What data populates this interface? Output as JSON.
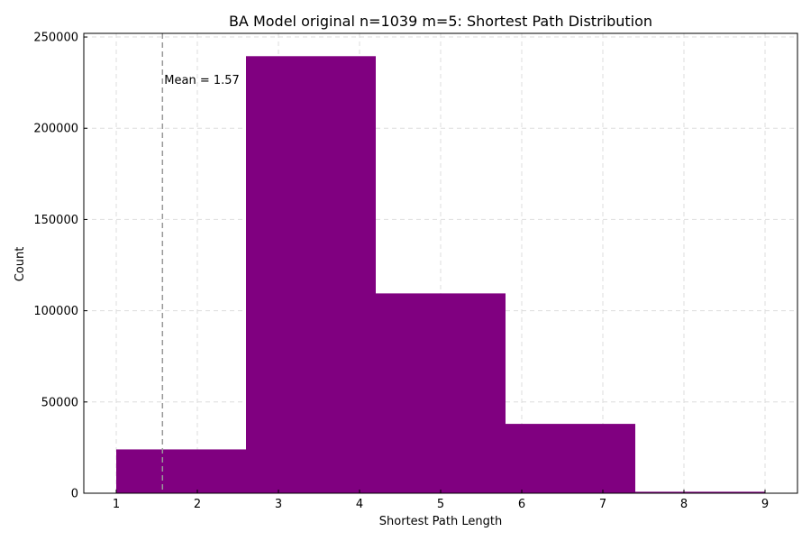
{
  "chart_data": {
    "type": "bar",
    "title": "BA Model original n=1039 m=5: Shortest Path Distribution",
    "xlabel": "Shortest Path Length",
    "ylabel": "Count",
    "xlim": [
      0.6,
      9.4
    ],
    "ylim": [
      0,
      252000
    ],
    "x_ticks": [
      1,
      2,
      3,
      4,
      5,
      6,
      7,
      8,
      9
    ],
    "y_ticks": [
      0,
      50000,
      100000,
      150000,
      200000,
      250000
    ],
    "bins": [
      {
        "x0": 1.0,
        "x1": 2.6,
        "value": 24000
      },
      {
        "x0": 2.6,
        "x1": 4.2,
        "value": 239500
      },
      {
        "x0": 4.2,
        "x1": 5.8,
        "value": 109500
      },
      {
        "x0": 5.8,
        "x1": 7.4,
        "value": 38000
      },
      {
        "x0": 7.4,
        "x1": 9.0,
        "value": 800
      }
    ],
    "bar_color": "#800080",
    "grid": true,
    "mean_line": {
      "x": 1.57,
      "label": "Mean = 1.57",
      "color": "#999999"
    }
  }
}
